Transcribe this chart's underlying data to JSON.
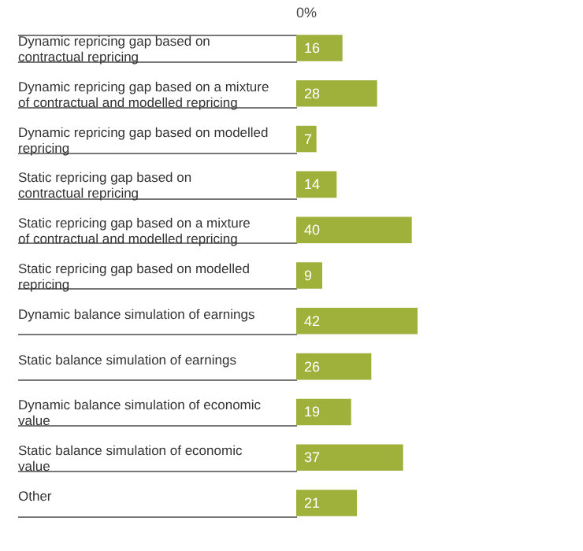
{
  "chart_data": {
    "type": "bar",
    "orientation": "horizontal",
    "categories": [
      "Dynamic repricing gap based on contractual repricing",
      "Dynamic repricing gap based on a mixture of contractual and modelled repricing",
      "Dynamic repricing gap based on modelled repricing",
      "Static repricing gap based on contractual repricing",
      "Static repricing gap based on a mixture of contractual and modelled repricing",
      "Static repricing gap based on modelled repricing",
      "Dynamic balance simulation of earnings",
      "Static balance simulation of earnings",
      "Dynamic balance simulation of economic value",
      "Static balance simulation of economic value",
      "Other"
    ],
    "values": [
      16,
      28,
      7,
      14,
      40,
      9,
      42,
      26,
      19,
      37,
      21
    ],
    "color": "#9fb13a",
    "data_labels": true,
    "annotations": [
      "0%"
    ]
  }
}
